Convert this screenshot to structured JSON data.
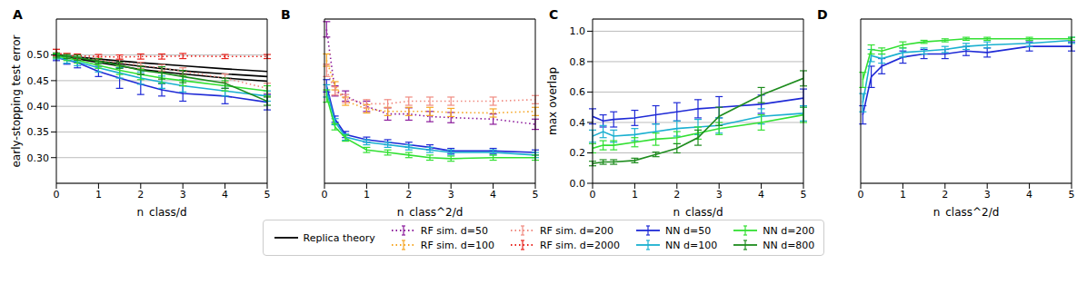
{
  "chart_data": [
    {
      "type": "line",
      "title": "A",
      "x_label": "n_class/d",
      "y_label": "early-stopping test error",
      "xlim": [
        0,
        5
      ],
      "xticks": [
        0,
        1,
        2,
        3,
        4,
        5
      ],
      "ylim": [
        0.25,
        0.57
      ],
      "yticks": [
        {
          "value": 0.3,
          "label": "0.30"
        },
        {
          "value": 0.35,
          "label": "0.35"
        },
        {
          "value": 0.4,
          "label": "0.40"
        },
        {
          "value": 0.45,
          "label": "0.45"
        },
        {
          "value": 0.5,
          "label": "0.50"
        }
      ],
      "grid": "y",
      "legend": "bottom",
      "series": [
        {
          "name": "Replica theory",
          "color": "#000000",
          "line_style": "solid",
          "x": [
            0,
            1,
            2,
            3,
            4,
            5
          ],
          "values": [
            0.5,
            0.492,
            0.485,
            0.479,
            0.473,
            0.468
          ]
        },
        {
          "name": "Replica theory",
          "color": "#000000",
          "line_style": "solid",
          "x": [
            0,
            1,
            2,
            3,
            4,
            5
          ],
          "values": [
            0.5,
            0.488,
            0.478,
            0.469,
            0.463,
            0.458
          ]
        },
        {
          "name": "Replica theory",
          "color": "#000000",
          "line_style": "solid",
          "x": [
            0,
            1,
            2,
            3,
            4,
            5
          ],
          "values": [
            0.5,
            0.485,
            0.472,
            0.463,
            0.455,
            0.449
          ]
        },
        {
          "name": "RF sim. d=200",
          "color": "#f08a80",
          "line_style": "dotted",
          "x": [
            0,
            0.25,
            0.5,
            1,
            1.5,
            2,
            2.5,
            3,
            4,
            5
          ],
          "values": [
            0.505,
            0.498,
            0.496,
            0.49,
            0.485,
            0.48,
            0.475,
            0.468,
            0.455,
            0.435
          ],
          "errors": [
            0.006,
            0.005,
            0.005,
            0.006,
            0.006,
            0.006,
            0.006,
            0.007,
            0.008,
            0.01
          ]
        },
        {
          "name": "RF sim. d=2000",
          "color": "#e8251f",
          "line_style": "dotted",
          "x": [
            0,
            0.25,
            0.5,
            1,
            1.5,
            2,
            2.5,
            3,
            4,
            5
          ],
          "values": [
            0.505,
            0.499,
            0.498,
            0.497,
            0.496,
            0.497,
            0.497,
            0.498,
            0.497,
            0.497
          ],
          "errors": [
            0.006,
            0.004,
            0.004,
            0.004,
            0.004,
            0.005,
            0.005,
            0.005,
            0.004,
            0.004
          ]
        },
        {
          "name": "NN d=50",
          "color": "#1f2ad6",
          "line_style": "solid",
          "x": [
            0,
            0.25,
            0.5,
            1,
            1.5,
            2,
            2.5,
            3,
            4,
            5
          ],
          "values": [
            0.495,
            0.49,
            0.485,
            0.468,
            0.455,
            0.443,
            0.432,
            0.425,
            0.42,
            0.408
          ],
          "errors": [
            0.006,
            0.008,
            0.01,
            0.01,
            0.02,
            0.02,
            0.012,
            0.015,
            0.015,
            0.015
          ]
        },
        {
          "name": "NN d=100",
          "color": "#1ab0d0",
          "line_style": "solid",
          "x": [
            0,
            0.25,
            0.5,
            1,
            1.5,
            2,
            2.5,
            3,
            4,
            5
          ],
          "values": [
            0.497,
            0.49,
            0.487,
            0.475,
            0.465,
            0.455,
            0.447,
            0.44,
            0.43,
            0.42
          ],
          "errors": [
            0.005,
            0.006,
            0.008,
            0.008,
            0.01,
            0.012,
            0.012,
            0.012,
            0.01,
            0.01
          ]
        },
        {
          "name": "NN d=200",
          "color": "#33e033",
          "line_style": "solid",
          "x": [
            0,
            0.25,
            0.5,
            1,
            1.5,
            2,
            2.5,
            3,
            4,
            5
          ],
          "values": [
            0.498,
            0.494,
            0.49,
            0.48,
            0.47,
            0.462,
            0.455,
            0.45,
            0.44,
            0.43
          ],
          "errors": [
            0.004,
            0.005,
            0.006,
            0.006,
            0.008,
            0.01,
            0.01,
            0.01,
            0.01,
            0.01
          ]
        },
        {
          "name": "NN d=800",
          "color": "#1e8c1e",
          "line_style": "solid",
          "x": [
            0,
            0.25,
            0.5,
            1,
            1.5,
            2,
            2.5,
            3,
            4,
            5
          ],
          "values": [
            0.5,
            0.497,
            0.495,
            0.488,
            0.48,
            0.47,
            0.465,
            0.458,
            0.445,
            0.41
          ],
          "errors": [
            0.004,
            0.004,
            0.005,
            0.005,
            0.006,
            0.008,
            0.012,
            0.012,
            0.01,
            0.008
          ]
        }
      ]
    },
    {
      "type": "line",
      "title": "B",
      "x_label": "n_class^2/d",
      "xlim": [
        0,
        5
      ],
      "xticks": [
        0,
        1,
        2,
        3,
        4,
        5
      ],
      "ylim": [
        0.25,
        0.57
      ],
      "yticks": [
        0.3,
        0.35,
        0.4,
        0.45,
        0.5
      ],
      "tick_labels": "x",
      "grid": "y",
      "legend": "bottom",
      "series": [
        {
          "name": "RF sim. d=50",
          "color": "#8b1a9b",
          "line_style": "dotted",
          "x": [
            0.05,
            0.25,
            0.5,
            1,
            1.5,
            2,
            2.5,
            3,
            4,
            5
          ],
          "values": [
            0.55,
            0.43,
            0.42,
            0.4,
            0.385,
            0.385,
            0.38,
            0.378,
            0.375,
            0.365
          ],
          "errors": [
            0.015,
            0.01,
            0.01,
            0.01,
            0.012,
            0.012,
            0.01,
            0.01,
            0.01,
            0.01
          ]
        },
        {
          "name": "RF sim. d=100",
          "color": "#f5a623",
          "line_style": "dotted",
          "x": [
            0.05,
            0.25,
            0.5,
            1,
            1.5,
            2,
            2.5,
            3,
            4,
            5
          ],
          "values": [
            0.49,
            0.44,
            0.41,
            0.395,
            0.39,
            0.39,
            0.39,
            0.388,
            0.387,
            0.39
          ],
          "errors": [
            0.012,
            0.008,
            0.008,
            0.008,
            0.008,
            0.008,
            0.008,
            0.008,
            0.008,
            0.008
          ]
        },
        {
          "name": "RF sim. d=200",
          "color": "#f08a80",
          "line_style": "dotted",
          "x": [
            0.05,
            0.25,
            0.5,
            1,
            1.5,
            2,
            2.5,
            3,
            4,
            5
          ],
          "values": [
            0.47,
            0.43,
            0.415,
            0.405,
            0.405,
            0.41,
            0.41,
            0.41,
            0.41,
            0.413
          ],
          "errors": [
            0.012,
            0.008,
            0.008,
            0.008,
            0.008,
            0.008,
            0.008,
            0.008,
            0.008,
            0.008
          ]
        },
        {
          "name": "NN d=50",
          "color": "#1f2ad6",
          "line_style": "solid",
          "x": [
            0.05,
            0.25,
            0.5,
            1,
            1.5,
            2,
            2.5,
            3,
            4,
            5
          ],
          "values": [
            0.44,
            0.375,
            0.345,
            0.335,
            0.33,
            0.325,
            0.32,
            0.313,
            0.313,
            0.31
          ],
          "errors": [
            0.012,
            0.006,
            0.006,
            0.005,
            0.005,
            0.005,
            0.005,
            0.005,
            0.005,
            0.005
          ]
        },
        {
          "name": "NN d=100",
          "color": "#1ab0d0",
          "line_style": "solid",
          "x": [
            0.05,
            0.25,
            0.5,
            1,
            1.5,
            2,
            2.5,
            3,
            4,
            5
          ],
          "values": [
            0.43,
            0.37,
            0.34,
            0.33,
            0.325,
            0.32,
            0.315,
            0.31,
            0.31,
            0.305
          ],
          "errors": [
            0.012,
            0.006,
            0.006,
            0.005,
            0.005,
            0.005,
            0.005,
            0.005,
            0.005,
            0.005
          ]
        },
        {
          "name": "NN d=200",
          "color": "#33e033",
          "line_style": "solid",
          "x": [
            0.05,
            0.25,
            0.5,
            1,
            1.5,
            2,
            2.5,
            3,
            4,
            5
          ],
          "values": [
            0.42,
            0.36,
            0.338,
            0.315,
            0.31,
            0.305,
            0.3,
            0.298,
            0.3,
            0.3
          ],
          "errors": [
            0.012,
            0.006,
            0.006,
            0.005,
            0.005,
            0.005,
            0.005,
            0.005,
            0.005,
            0.005
          ]
        }
      ]
    },
    {
      "type": "line",
      "title": "C",
      "x_label": "n_class/d",
      "y_label": "max overlap",
      "xlim": [
        0,
        5
      ],
      "xticks": [
        0,
        1,
        2,
        3,
        4,
        5
      ],
      "ylim": [
        0,
        1.08
      ],
      "yticks": [
        {
          "value": 0,
          "label": "0.0"
        },
        {
          "value": 0.2,
          "label": "0.2"
        },
        {
          "value": 0.4,
          "label": "0.4"
        },
        {
          "value": 0.6,
          "label": "0.6"
        },
        {
          "value": 0.8,
          "label": "0.8"
        },
        {
          "value": 1,
          "label": "1.0"
        }
      ],
      "grid": "y",
      "legend": "bottom",
      "series": [
        {
          "name": "NN d=50",
          "color": "#1f2ad6",
          "line_style": "solid",
          "x": [
            0,
            0.25,
            0.5,
            1,
            1.5,
            2,
            2.5,
            3,
            4,
            5
          ],
          "values": [
            0.44,
            0.41,
            0.42,
            0.43,
            0.45,
            0.47,
            0.49,
            0.5,
            0.52,
            0.56
          ],
          "errors": [
            0.05,
            0.04,
            0.05,
            0.05,
            0.06,
            0.06,
            0.06,
            0.07,
            0.06,
            0.06
          ]
        },
        {
          "name": "NN d=100",
          "color": "#1ab0d0",
          "line_style": "solid",
          "x": [
            0,
            0.25,
            0.5,
            1,
            1.5,
            2,
            2.5,
            3,
            4,
            5
          ],
          "values": [
            0.31,
            0.34,
            0.31,
            0.32,
            0.34,
            0.36,
            0.37,
            0.38,
            0.44,
            0.46
          ],
          "errors": [
            0.04,
            0.04,
            0.04,
            0.04,
            0.05,
            0.05,
            0.05,
            0.05,
            0.05,
            0.05
          ]
        },
        {
          "name": "NN d=200",
          "color": "#33e033",
          "line_style": "solid",
          "x": [
            0,
            0.25,
            0.5,
            1,
            1.5,
            2,
            2.5,
            3,
            4,
            5
          ],
          "values": [
            0.23,
            0.25,
            0.25,
            0.27,
            0.29,
            0.3,
            0.33,
            0.36,
            0.4,
            0.45
          ],
          "errors": [
            0.03,
            0.03,
            0.03,
            0.03,
            0.04,
            0.04,
            0.04,
            0.04,
            0.05,
            0.05
          ]
        },
        {
          "name": "NN d=800",
          "color": "#1e8c1e",
          "line_style": "solid",
          "x": [
            0,
            0.25,
            0.5,
            1,
            1.5,
            2,
            2.5,
            3,
            4,
            5
          ],
          "values": [
            0.13,
            0.14,
            0.14,
            0.15,
            0.19,
            0.23,
            0.3,
            0.44,
            0.58,
            0.69
          ],
          "errors": [
            0.015,
            0.015,
            0.015,
            0.015,
            0.015,
            0.03,
            0.05,
            0.06,
            0.05,
            0.05
          ]
        }
      ]
    },
    {
      "type": "line",
      "title": "D",
      "x_label": "n_class^2/d",
      "xlim": [
        0,
        5
      ],
      "xticks": [
        0,
        1,
        2,
        3,
        4,
        5
      ],
      "ylim": [
        0,
        1.08
      ],
      "yticks": [
        0,
        0.2,
        0.4,
        0.6,
        0.8,
        1
      ],
      "tick_labels": "x",
      "grid": "y",
      "legend": "bottom",
      "series": [
        {
          "name": "NN d=50",
          "color": "#1f2ad6",
          "line_style": "solid",
          "x": [
            0.05,
            0.25,
            0.5,
            1,
            1.5,
            2,
            2.5,
            3,
            4,
            5
          ],
          "values": [
            0.45,
            0.7,
            0.77,
            0.83,
            0.85,
            0.85,
            0.87,
            0.86,
            0.9,
            0.9
          ],
          "errors": [
            0.06,
            0.07,
            0.05,
            0.04,
            0.03,
            0.03,
            0.03,
            0.03,
            0.03,
            0.03
          ]
        },
        {
          "name": "NN d=100",
          "color": "#1ab0d0",
          "line_style": "solid",
          "x": [
            0.05,
            0.25,
            0.5,
            1,
            1.5,
            2,
            2.5,
            3,
            4,
            5
          ],
          "values": [
            0.53,
            0.84,
            0.82,
            0.86,
            0.87,
            0.88,
            0.9,
            0.91,
            0.92,
            0.94
          ],
          "errors": [
            0.06,
            0.04,
            0.03,
            0.03,
            0.02,
            0.02,
            0.02,
            0.02,
            0.02,
            0.02
          ]
        },
        {
          "name": "NN d=200",
          "color": "#33e033",
          "line_style": "solid",
          "x": [
            0.05,
            0.25,
            0.5,
            1,
            1.5,
            2,
            2.5,
            3,
            4,
            5
          ],
          "values": [
            0.68,
            0.88,
            0.87,
            0.91,
            0.93,
            0.94,
            0.95,
            0.95,
            0.95,
            0.95
          ],
          "errors": [
            0.05,
            0.03,
            0.02,
            0.02,
            0.01,
            0.01,
            0.01,
            0.01,
            0.01,
            0.01
          ]
        }
      ]
    }
  ]
}
